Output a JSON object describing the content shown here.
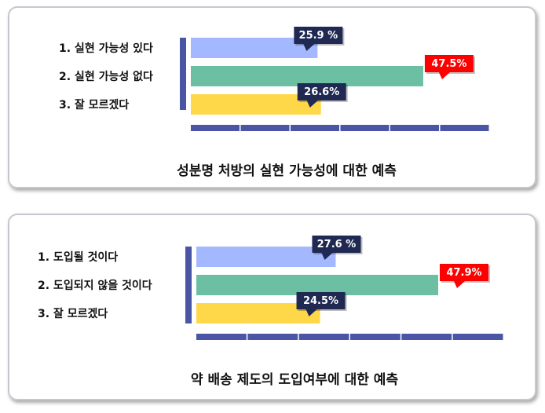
{
  "colors": {
    "series": [
      "#a4b8ff",
      "#6cbfa2",
      "#ffd84a"
    ],
    "callout_default": "#1f2952",
    "callout_highlight": "#ff0000",
    "axis": "#4a55a6"
  },
  "chart_data": [
    {
      "type": "bar",
      "orientation": "horizontal",
      "title": "성분명 처방의 실현 가능성에 대한 예측",
      "categories": [
        "1. 실현 가능성 있다",
        "2. 실현 가능성 없다",
        "3. 잘 모르겠다"
      ],
      "values": [
        25.9,
        47.5,
        26.6
      ],
      "value_labels": [
        "25.9 %",
        "47.5%",
        "26.6%"
      ],
      "highlight": [
        false,
        true,
        false
      ],
      "xlim": [
        0,
        60
      ],
      "grid": false
    },
    {
      "type": "bar",
      "orientation": "horizontal",
      "title": "약 배송 제도의 도입여부에 대한 예측",
      "categories": [
        "1. 도입될 것이다",
        "2. 도입되지 않을 것이다",
        "3. 잘 모르겠다"
      ],
      "values": [
        27.6,
        47.9,
        24.5
      ],
      "value_labels": [
        "27.6 %",
        "47.9%",
        "24.5%"
      ],
      "highlight": [
        false,
        true,
        false
      ],
      "xlim": [
        0,
        60
      ],
      "grid": false
    }
  ]
}
